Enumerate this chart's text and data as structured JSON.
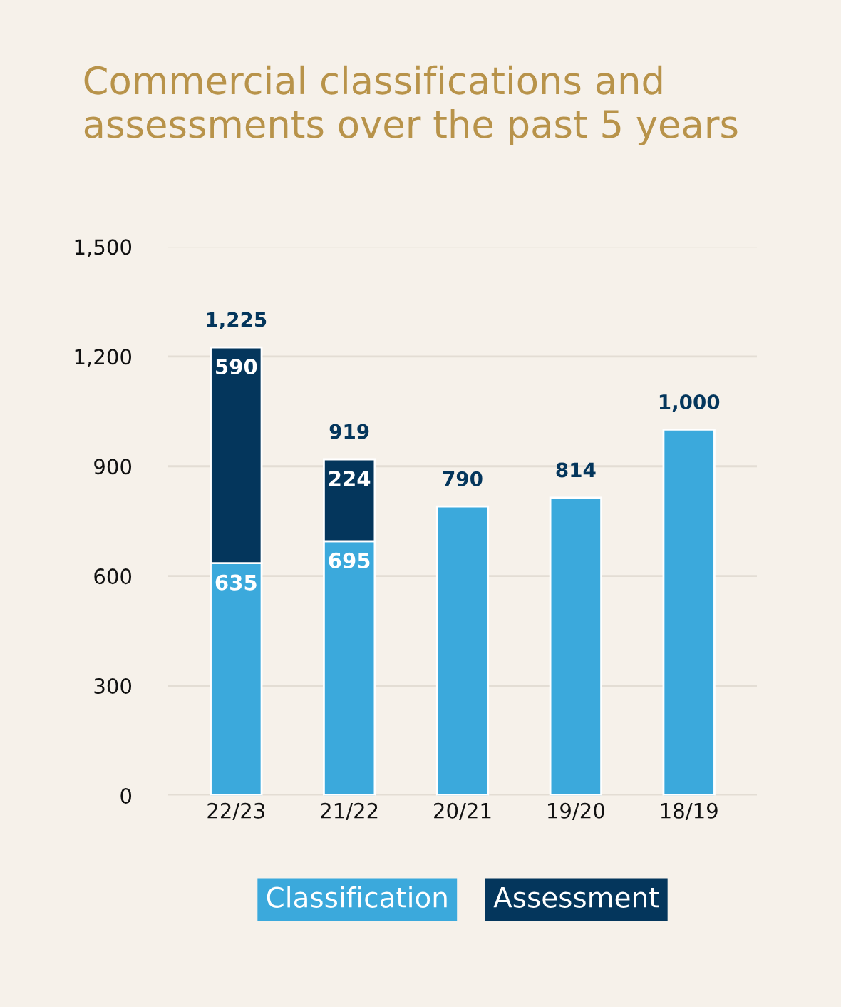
{
  "chart_data": {
    "type": "bar",
    "title": "Commercial classifications and\nassessments over the past 5 years",
    "categories": [
      "22/23",
      "21/22",
      "20/21",
      "19/20",
      "18/19"
    ],
    "stacked": true,
    "series": [
      {
        "name": "Classification",
        "color": "#3ba9dc",
        "values": [
          635,
          695,
          790,
          814,
          1000
        ],
        "value_labels": [
          "635",
          "695",
          null,
          null,
          null
        ]
      },
      {
        "name": "Assessment",
        "color": "#04365c",
        "values": [
          590,
          224,
          null,
          null,
          null
        ],
        "value_labels": [
          "590",
          "224",
          null,
          null,
          null
        ]
      }
    ],
    "totals": [
      "1,225",
      "919",
      "790",
      "814",
      "1,000"
    ],
    "ylim": [
      0,
      1500
    ],
    "yticks": [
      0,
      300,
      600,
      900,
      {
        "value": 1200,
        "label": "1,200"
      },
      {
        "value": 1500,
        "label": "1,500"
      }
    ],
    "grid": "y",
    "legend": "bottom"
  }
}
